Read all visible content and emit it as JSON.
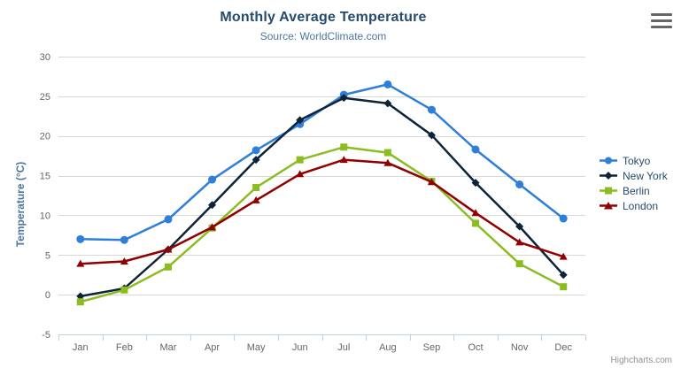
{
  "chart": {
    "title": "Monthly Average Temperature",
    "subtitle": "Source: WorldClimate.com"
  },
  "chart_data": {
    "type": "line",
    "title": "Monthly Average Temperature",
    "subtitle": "Source: WorldClimate.com",
    "categories": [
      "Jan",
      "Feb",
      "Mar",
      "Apr",
      "May",
      "Jun",
      "Jul",
      "Aug",
      "Sep",
      "Oct",
      "Nov",
      "Dec"
    ],
    "series": [
      {
        "name": "Tokyo",
        "color": "#2f7ed8",
        "marker": "circle",
        "values": [
          7.0,
          6.9,
          9.5,
          14.5,
          18.2,
          21.5,
          25.2,
          26.5,
          23.3,
          18.3,
          13.9,
          9.6
        ]
      },
      {
        "name": "New York",
        "color": "#0d233a",
        "marker": "diamond",
        "values": [
          -0.2,
          0.8,
          5.7,
          11.3,
          17.0,
          22.0,
          24.8,
          24.1,
          20.1,
          14.1,
          8.6,
          2.5
        ]
      },
      {
        "name": "Berlin",
        "color": "#8bbc21",
        "marker": "square",
        "values": [
          -0.9,
          0.6,
          3.5,
          8.4,
          13.5,
          17.0,
          18.6,
          17.9,
          14.3,
          9.0,
          3.9,
          1.0
        ]
      },
      {
        "name": "London",
        "color": "#910000",
        "marker": "triangle",
        "values": [
          3.9,
          4.2,
          5.7,
          8.5,
          11.9,
          15.2,
          17.0,
          16.6,
          14.2,
          10.3,
          6.6,
          4.8
        ]
      }
    ],
    "xlabel": "",
    "ylabel": "Temperature (°C)",
    "ylim": [
      -5,
      30
    ],
    "ytick_step": 5,
    "grid": true,
    "legend_position": "right"
  },
  "legend": {
    "items": [
      "Tokyo",
      "New York",
      "Berlin",
      "London"
    ]
  },
  "credit": {
    "label": "Highcharts.com"
  },
  "icons": {
    "export_menu_icon": "hamburger-menu"
  },
  "colors": {
    "title": "#274b6d",
    "subtitle": "#4d759e",
    "axis_labels": "#666666",
    "axis_title": "#4d759e",
    "axis_line": "#c0d0e0",
    "gridline": "#d8d8d8",
    "legend_text": "#274b6d",
    "credit": "#909090",
    "export_icon": "#666666",
    "background": "#ffffff"
  }
}
